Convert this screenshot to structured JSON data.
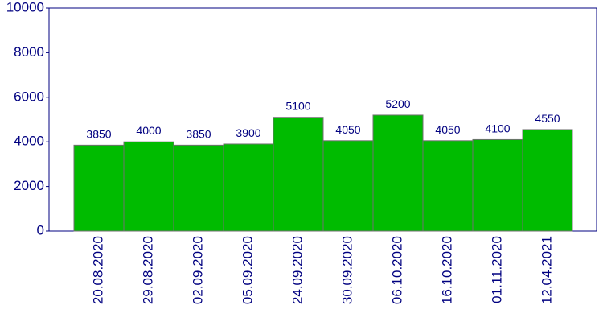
{
  "chart_data": {
    "type": "bar",
    "categories": [
      "20.08.2020",
      "29.08.2020",
      "02.09.2020",
      "05.09.2020",
      "24.09.2020",
      "30.09.2020",
      "06.10.2020",
      "16.10.2020",
      "01.11.2020",
      "12.04.2021"
    ],
    "values": [
      3850,
      4000,
      3850,
      3900,
      5100,
      4050,
      5200,
      4050,
      4100,
      4550
    ],
    "color": "#00bb00",
    "ylim": [
      0,
      10000
    ],
    "yticks": [
      0,
      2000,
      4000,
      6000,
      8000,
      10000
    ],
    "grid": false
  }
}
